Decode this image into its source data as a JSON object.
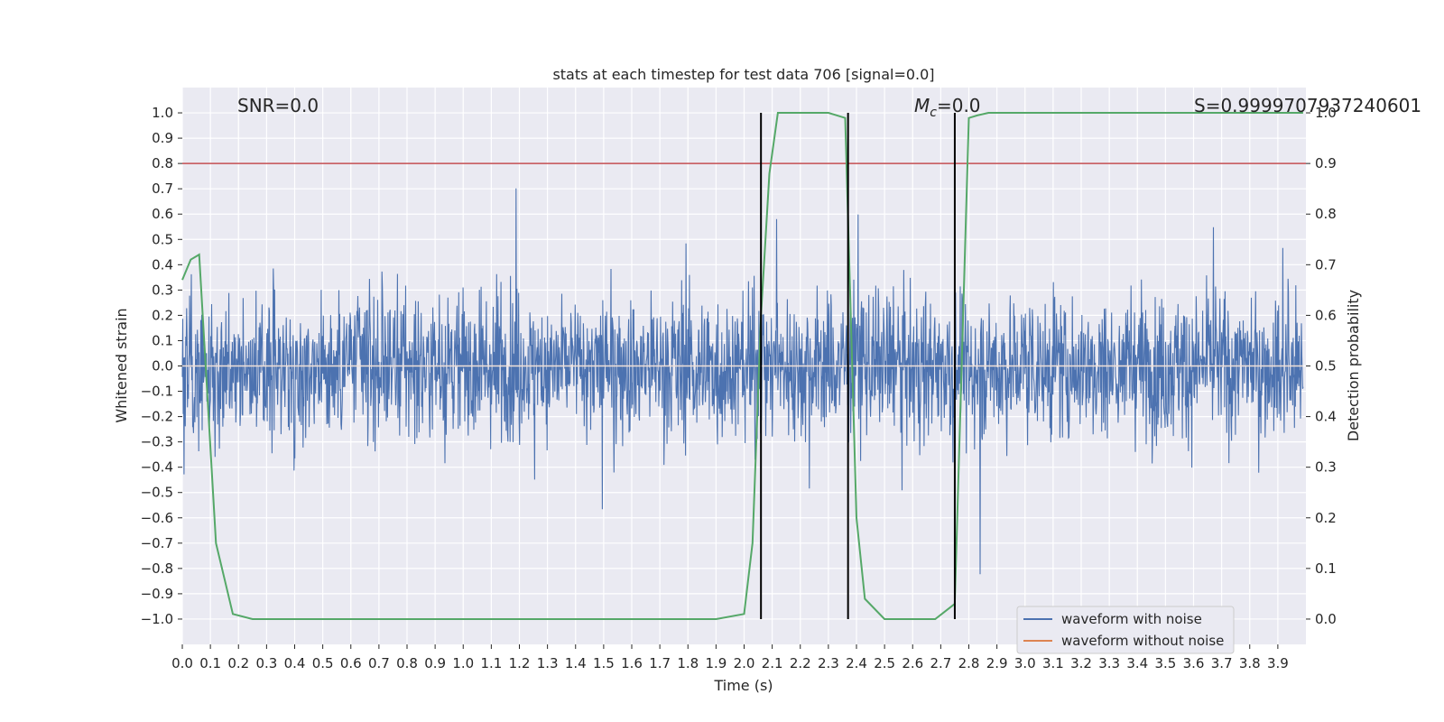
{
  "chart_data": {
    "type": "line",
    "title": "stats at each timestep for test data 706 [signal=0.0]",
    "xlabel": "Time (s)",
    "ylabel": "Whitened strain",
    "ylabel_right": "Detection probability",
    "xlim": [
      0.0,
      4.0
    ],
    "ylim": [
      -1.1,
      1.1
    ],
    "ylim_right": [
      -0.05,
      1.05
    ],
    "x_ticks": [
      "0.0",
      "0.1",
      "0.2",
      "0.3",
      "0.4",
      "0.5",
      "0.6",
      "0.7",
      "0.8",
      "0.9",
      "1.0",
      "1.1",
      "1.2",
      "1.3",
      "1.4",
      "1.5",
      "1.6",
      "1.7",
      "1.8",
      "1.9",
      "2.0",
      "2.1",
      "2.2",
      "2.3",
      "2.4",
      "2.5",
      "2.6",
      "2.7",
      "2.8",
      "2.9",
      "3.0",
      "3.1",
      "3.2",
      "3.3",
      "3.4",
      "3.5",
      "3.6",
      "3.7",
      "3.8",
      "3.9"
    ],
    "y_ticks": [
      "1.0",
      "0.9",
      "0.8",
      "0.7",
      "0.6",
      "0.5",
      "0.4",
      "0.3",
      "0.2",
      "0.1",
      "0.0",
      "−0.1",
      "−0.2",
      "−0.3",
      "−0.4",
      "−0.5",
      "−0.6",
      "−0.7",
      "−0.8",
      "−0.9",
      "−1.0"
    ],
    "y_ticks_right": [
      "1.0",
      "0.9",
      "0.8",
      "0.7",
      "0.6",
      "0.5",
      "0.4",
      "0.3",
      "0.2",
      "0.1",
      "0.0"
    ],
    "annotations": {
      "snr": "SNR=0.0",
      "mc_symbol": "M",
      "mc_sub": "c",
      "mc_value": "=0.0",
      "s_value": "S=0.9999707937240601"
    },
    "threshold_line": {
      "value": 0.9,
      "axis": "right",
      "color": "#c44e52"
    },
    "detection_markers": [
      2.06,
      2.37,
      2.75
    ],
    "series": [
      {
        "name": "waveform with noise",
        "color": "#4c72b0",
        "amplitude_range": [
          -1.0,
          1.0
        ]
      },
      {
        "name": "waveform without noise",
        "color": "#dd8452",
        "values_constant": 0.0
      },
      {
        "name": "detection probability",
        "color": "#55a868",
        "axis": "right",
        "x": [
          0.0,
          0.03,
          0.06,
          0.12,
          0.18,
          0.25,
          0.5,
          1.0,
          1.5,
          1.9,
          2.0,
          2.03,
          2.06,
          2.09,
          2.12,
          2.2,
          2.3,
          2.36,
          2.4,
          2.43,
          2.5,
          2.6,
          2.68,
          2.75,
          2.8,
          2.83,
          2.87,
          3.0,
          3.5,
          3.99
        ],
        "values": [
          0.67,
          0.71,
          0.72,
          0.15,
          0.01,
          0.0,
          0.0,
          0.0,
          0.0,
          0.0,
          0.01,
          0.15,
          0.6,
          0.88,
          1.0,
          1.0,
          1.0,
          0.99,
          0.2,
          0.04,
          0.0,
          0.0,
          0.0,
          0.03,
          0.99,
          0.995,
          1.0,
          1.0,
          1.0,
          1.0
        ]
      }
    ],
    "legend": {
      "placement": "lower-right",
      "entries": [
        {
          "label": "waveform with noise",
          "color": "#4c72b0"
        },
        {
          "label": "waveform without noise",
          "color": "#dd8452"
        }
      ]
    },
    "colors": {
      "plot_bg": "#eaeaf2",
      "grid": "#ffffff",
      "marker": "#000000"
    }
  }
}
